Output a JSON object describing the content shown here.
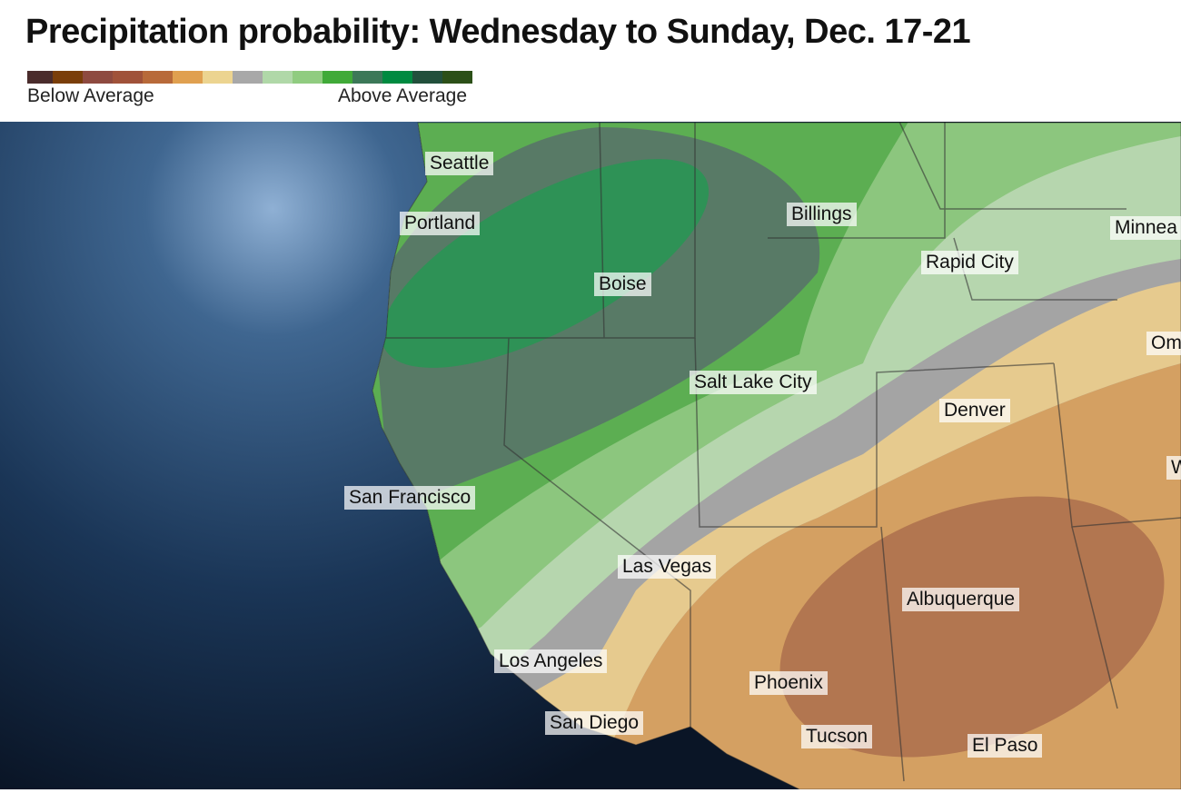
{
  "title": "Precipitation probability: Wednesday to Sunday, Dec. 17-21",
  "legend": {
    "below": "Below Average",
    "above": "Above Average",
    "colors": [
      "#4a2c2c",
      "#7a3e0a",
      "#8e4a40",
      "#a0523a",
      "#b86a3a",
      "#e0a050",
      "#ecd490",
      "#a8a8a8",
      "#b0d8a8",
      "#90cc80",
      "#40aa38",
      "#3c7858",
      "#008a40",
      "#22503c",
      "#2c5018"
    ]
  },
  "cities": [
    {
      "name": "Seattle"
    },
    {
      "name": "Portland"
    },
    {
      "name": "Boise"
    },
    {
      "name": "Billings"
    },
    {
      "name": "Minnea"
    },
    {
      "name": "Rapid City"
    },
    {
      "name": "Om"
    },
    {
      "name": "Salt Lake City"
    },
    {
      "name": "Denver"
    },
    {
      "name": "W"
    },
    {
      "name": "San Francisco"
    },
    {
      "name": "Las Vegas"
    },
    {
      "name": "Albuquerque"
    },
    {
      "name": "Los Angeles"
    },
    {
      "name": "Phoenix"
    },
    {
      "name": "San Diego"
    },
    {
      "name": "Tucson"
    },
    {
      "name": "El Paso"
    }
  ]
}
